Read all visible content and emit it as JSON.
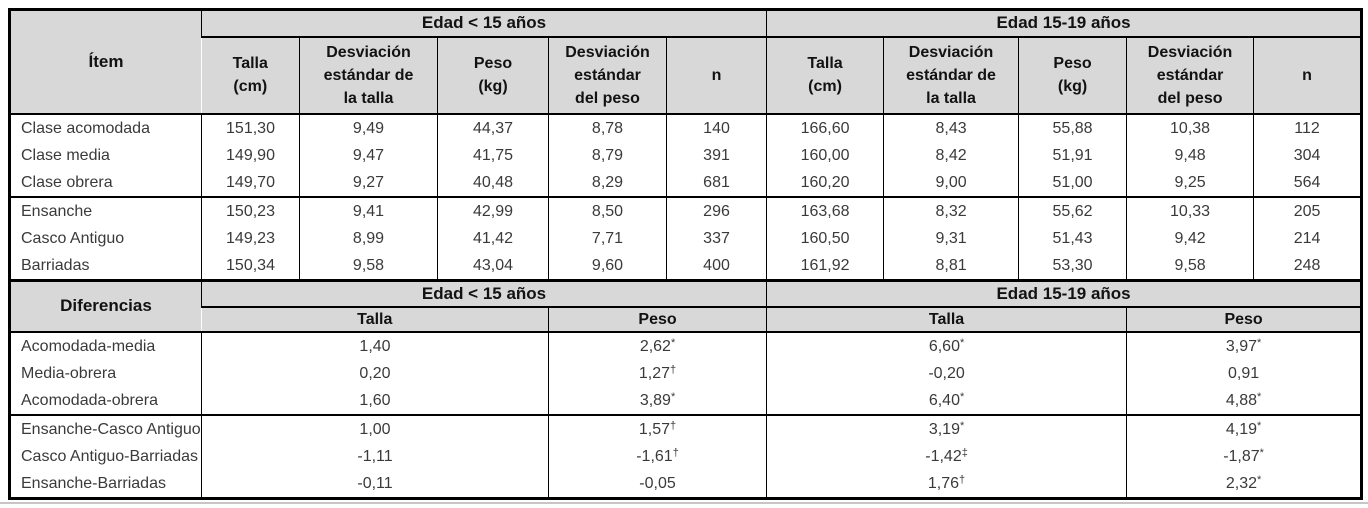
{
  "styles": {
    "header_bg": "#d8d8d8",
    "border_color": "#000000",
    "body_bg": "#ffffff",
    "text_color": "#3a3a3a"
  },
  "table1": {
    "item_header": "Ítem",
    "group_headers": [
      "Edad < 15 años",
      "Edad 15-19 años"
    ],
    "col_headers": [
      "Talla\n(cm)",
      "Desviación\nestándar de\nla talla",
      "Peso\n(kg)",
      "Desviación\nestándar\ndel peso",
      "n"
    ],
    "row_groups": [
      {
        "rows": [
          {
            "label": "Clase acomodada",
            "values": [
              "151,30",
              "9,49",
              "44,37",
              "8,78",
              "140",
              "166,60",
              "8,43",
              "55,88",
              "10,38",
              "112"
            ]
          },
          {
            "label": "Clase media",
            "values": [
              "149,90",
              "9,47",
              "41,75",
              "8,79",
              "391",
              "160,00",
              "8,42",
              "51,91",
              "9,48",
              "304"
            ]
          },
          {
            "label": "Clase obrera",
            "values": [
              "149,70",
              "9,27",
              "40,48",
              "8,29",
              "681",
              "160,20",
              "9,00",
              "51,00",
              "9,25",
              "564"
            ]
          }
        ]
      },
      {
        "rows": [
          {
            "label": "Ensanche",
            "values": [
              "150,23",
              "9,41",
              "42,99",
              "8,50",
              "296",
              "163,68",
              "8,32",
              "55,62",
              "10,33",
              "205"
            ]
          },
          {
            "label": "Casco Antiguo",
            "values": [
              "149,23",
              "8,99",
              "41,42",
              "7,71",
              "337",
              "160,50",
              "9,31",
              "51,43",
              "9,42",
              "214"
            ]
          },
          {
            "label": "Barriadas",
            "values": [
              "150,34",
              "9,58",
              "43,04",
              "9,60",
              "400",
              "161,92",
              "8,81",
              "53,30",
              "9,58",
              "248"
            ]
          }
        ]
      }
    ]
  },
  "table2": {
    "item_header": "Diferencias",
    "group_headers": [
      "Edad < 15 años",
      "Edad 15-19 años"
    ],
    "col_headers": [
      "Talla",
      "Peso",
      "Talla",
      "Peso"
    ],
    "row_groups": [
      {
        "rows": [
          {
            "label": "Acomodada-media",
            "cells": [
              {
                "v": "1,40",
                "m": ""
              },
              {
                "v": "2,62",
                "m": "*"
              },
              {
                "v": "6,60",
                "m": "*"
              },
              {
                "v": "3,97",
                "m": "*"
              }
            ]
          },
          {
            "label": "Media-obrera",
            "cells": [
              {
                "v": "0,20",
                "m": ""
              },
              {
                "v": "1,27",
                "m": "†"
              },
              {
                "v": "-0,20",
                "m": ""
              },
              {
                "v": "0,91",
                "m": ""
              }
            ]
          },
          {
            "label": "Acomodada-obrera",
            "cells": [
              {
                "v": "1,60",
                "m": ""
              },
              {
                "v": "3,89",
                "m": "*"
              },
              {
                "v": "6,40",
                "m": "*"
              },
              {
                "v": "4,88",
                "m": "*"
              }
            ]
          }
        ]
      },
      {
        "rows": [
          {
            "label": "Ensanche-Casco Antiguo",
            "cells": [
              {
                "v": "1,00",
                "m": ""
              },
              {
                "v": "1,57",
                "m": "†"
              },
              {
                "v": "3,19",
                "m": "*"
              },
              {
                "v": "4,19",
                "m": "*"
              }
            ]
          },
          {
            "label": "Casco Antiguo-Barriadas",
            "cells": [
              {
                "v": "-1,11",
                "m": ""
              },
              {
                "v": "-1,61",
                "m": "†"
              },
              {
                "v": "-1,42",
                "m": "‡"
              },
              {
                "v": "-1,87",
                "m": "*"
              }
            ]
          },
          {
            "label": "Ensanche-Barriadas",
            "cells": [
              {
                "v": "-0,11",
                "m": ""
              },
              {
                "v": "-0,05",
                "m": ""
              },
              {
                "v": "1,76",
                "m": "†"
              },
              {
                "v": "2,32",
                "m": "*"
              }
            ]
          }
        ]
      }
    ]
  }
}
